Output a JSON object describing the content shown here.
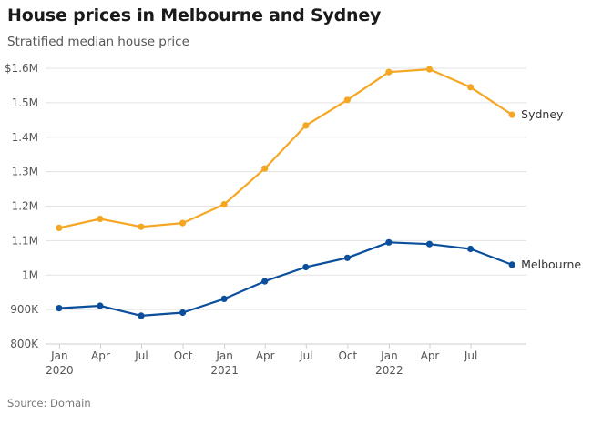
{
  "header": {
    "title": "House prices in Melbourne and Sydney",
    "subtitle": "Stratified median house price"
  },
  "footer": {
    "source": "Source: Domain"
  },
  "colors": {
    "sydney": "#f5a623",
    "melbourne": "#0b4f9c",
    "grid": "#e3e3e3",
    "axis": "#cfcfcf"
  },
  "chart_data": {
    "type": "line",
    "title": "House prices in Melbourne and Sydney",
    "subtitle": "Stratified median house price",
    "ylabel": "",
    "xlabel": "",
    "ylim": [
      800000,
      1600000
    ],
    "yticks": [
      800000,
      900000,
      1000000,
      1100000,
      1200000,
      1300000,
      1400000,
      1500000,
      1600000
    ],
    "ytick_labels": [
      "800K",
      "900K",
      "1M",
      "1.1M",
      "1.2M",
      "1.3M",
      "1.4M",
      "1.5M",
      "$1.6M"
    ],
    "xlim": [
      "2019-12-01",
      "2022-11-01"
    ],
    "xticks": [
      {
        "date": "2020-01-01",
        "label": "Jan",
        "year": "2020"
      },
      {
        "date": "2020-04-01",
        "label": "Apr",
        "year": ""
      },
      {
        "date": "2020-07-01",
        "label": "Jul",
        "year": ""
      },
      {
        "date": "2020-10-01",
        "label": "Oct",
        "year": ""
      },
      {
        "date": "2021-01-01",
        "label": "Jan",
        "year": "2021"
      },
      {
        "date": "2021-04-01",
        "label": "Apr",
        "year": ""
      },
      {
        "date": "2021-07-01",
        "label": "Jul",
        "year": ""
      },
      {
        "date": "2021-10-01",
        "label": "Oct",
        "year": ""
      },
      {
        "date": "2022-01-01",
        "label": "Jan",
        "year": "2022"
      },
      {
        "date": "2022-04-01",
        "label": "Apr",
        "year": ""
      },
      {
        "date": "2022-07-01",
        "label": "Jul",
        "year": ""
      }
    ],
    "x": [
      "2019-12-31",
      "2020-03-31",
      "2020-06-30",
      "2020-09-30",
      "2020-12-31",
      "2021-03-31",
      "2021-06-30",
      "2021-09-30",
      "2021-12-31",
      "2022-03-31",
      "2022-06-30",
      "2022-09-30"
    ],
    "grid": true,
    "series": [
      {
        "name": "Sydney",
        "color": "#f5a623",
        "values": [
          1137000,
          1163000,
          1140000,
          1151000,
          1205000,
          1309000,
          1434000,
          1508000,
          1589000,
          1597000,
          1545000,
          1465000
        ]
      },
      {
        "name": "Melbourne",
        "color": "#0b4f9c",
        "values": [
          904000,
          911000,
          882000,
          891000,
          931000,
          982000,
          1023000,
          1050000,
          1095000,
          1090000,
          1076000,
          1030000
        ]
      }
    ]
  }
}
